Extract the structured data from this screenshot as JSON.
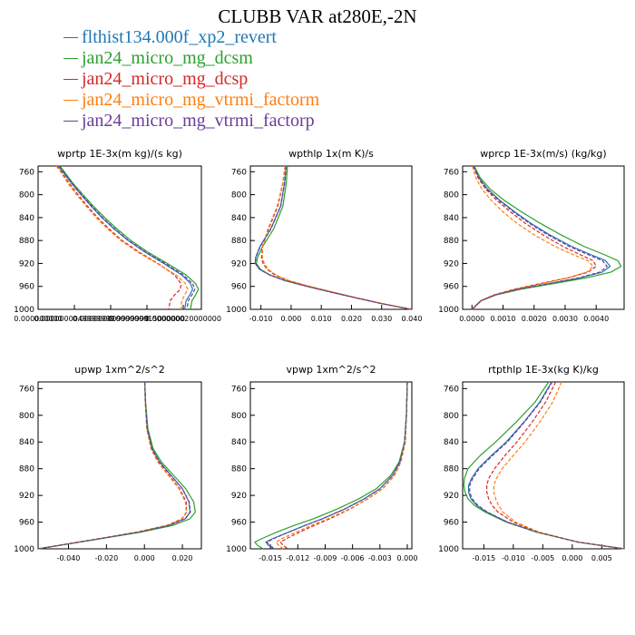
{
  "title": "CLUBB VAR at280E,-2N",
  "legend": [
    {
      "label": "flthist134.000f_xp2_revert",
      "color": "#1f77b4"
    },
    {
      "label": "jan24_micro_mg_dcsm",
      "color": "#2ca02c"
    },
    {
      "label": "jan24_micro_mg_dcsp",
      "color": "#d62728"
    },
    {
      "label": "jan24_micro_mg_vtrmi_factorm",
      "color": "#ff7f0e"
    },
    {
      "label": "jan24_micro_mg_vtrmi_factorp",
      "color": "#6a3d9a"
    }
  ],
  "chart_data": [
    {
      "type": "line",
      "title": "wprtp  1E-3x(m kg)/(s kg)",
      "ylim": [
        1000,
        750
      ],
      "yticks": [
        760,
        800,
        840,
        880,
        920,
        960,
        1000
      ],
      "xlim": [
        0,
        2.25e-08
      ],
      "xticks": [
        0,
        5e-09,
        1e-08,
        1.5e-08,
        2e-08
      ],
      "xticklabels": [
        "0.000000000",
        "0.0000000049999999",
        "0.000000009999999",
        "0.000000015000000",
        "0.000000020000000"
      ],
      "y": [
        750,
        760,
        780,
        800,
        820,
        840,
        860,
        880,
        900,
        920,
        940,
        955,
        965,
        975,
        985,
        1000
      ],
      "series": [
        {
          "color": "#1f77b4",
          "style": "solid",
          "x": [
            2.8e-09,
            3.4e-09,
            4.6e-09,
            5.9e-09,
            7.3e-09,
            8.8e-09,
            1.05e-08,
            1.24e-08,
            1.47e-08,
            1.73e-08,
            1.98e-08,
            2.1e-08,
            2.13e-08,
            2.09e-08,
            2.04e-08,
            2.02e-08
          ]
        },
        {
          "color": "#2ca02c",
          "style": "solid",
          "x": [
            3e-09,
            3.6e-09,
            4.8e-09,
            6.2e-09,
            7.6e-09,
            9.2e-09,
            1.09e-08,
            1.28e-08,
            1.51e-08,
            1.78e-08,
            2.04e-08,
            2.17e-08,
            2.21e-08,
            2.17e-08,
            2.12e-08,
            2.1e-08
          ]
        },
        {
          "color": "#d62728",
          "style": "dash",
          "x": [
            2.6e-09,
            3.2e-09,
            4.3e-09,
            5.5e-09,
            6.8e-09,
            8.2e-09,
            9.8e-09,
            1.16e-08,
            1.39e-08,
            1.65e-08,
            1.88e-08,
            1.97e-08,
            1.96e-08,
            1.88e-08,
            1.82e-08,
            1.8e-08
          ]
        },
        {
          "color": "#ff7f0e",
          "style": "dash",
          "x": [
            2.5e-09,
            3.1e-09,
            4.1e-09,
            5.3e-09,
            6.6e-09,
            8e-09,
            9.6e-09,
            1.14e-08,
            1.37e-08,
            1.64e-08,
            1.9e-08,
            2.03e-08,
            2.06e-08,
            2.02e-08,
            1.98e-08,
            1.97e-08
          ]
        },
        {
          "color": "#6a3d9a",
          "style": "dash",
          "x": [
            2.9e-09,
            3.5e-09,
            4.7e-09,
            6e-09,
            7.4e-09,
            8.9e-09,
            1.06e-08,
            1.25e-08,
            1.48e-08,
            1.75e-08,
            2e-08,
            2.13e-08,
            2.16e-08,
            2.12e-08,
            2.07e-08,
            2.05e-08
          ]
        }
      ]
    },
    {
      "type": "line",
      "title": "wpthlp  1x(m K)/s",
      "ylim": [
        1000,
        750
      ],
      "yticks": [
        760,
        800,
        840,
        880,
        920,
        960,
        1000
      ],
      "xlim": [
        -0.0135,
        0.04
      ],
      "xticks": [
        -0.01,
        0.0,
        0.01,
        0.02,
        0.03,
        0.04
      ],
      "xticklabels": [
        "-0.010",
        "0.000",
        "0.010",
        "0.020",
        "0.030",
        "0.040"
      ],
      "y": [
        750,
        780,
        820,
        860,
        890,
        910,
        920,
        930,
        940,
        950,
        960,
        970,
        980,
        990,
        1000
      ],
      "series": [
        {
          "color": "#1f77b4",
          "style": "solid",
          "x": [
            -0.0017,
            -0.0022,
            -0.0035,
            -0.0068,
            -0.0103,
            -0.0118,
            -0.0119,
            -0.0105,
            -0.0072,
            -0.002,
            0.0052,
            0.0132,
            0.0215,
            0.03,
            0.0398
          ]
        },
        {
          "color": "#2ca02c",
          "style": "solid",
          "x": [
            -0.0012,
            -0.0016,
            -0.0027,
            -0.0058,
            -0.0094,
            -0.0112,
            -0.0115,
            -0.0102,
            -0.007,
            -0.0018,
            0.0054,
            0.0133,
            0.0216,
            0.03,
            0.0398
          ]
        },
        {
          "color": "#d62728",
          "style": "dash",
          "x": [
            -0.002,
            -0.0027,
            -0.0044,
            -0.0075,
            -0.0095,
            -0.0098,
            -0.0093,
            -0.008,
            -0.0054,
            -0.0008,
            0.006,
            0.0137,
            0.0218,
            0.0302,
            0.0398
          ]
        },
        {
          "color": "#ff7f0e",
          "style": "dash",
          "x": [
            -0.002,
            -0.0028,
            -0.0046,
            -0.0077,
            -0.0094,
            -0.0095,
            -0.0089,
            -0.0076,
            -0.005,
            -0.0006,
            0.0062,
            0.0138,
            0.0219,
            0.0302,
            0.0398
          ]
        },
        {
          "color": "#6a3d9a",
          "style": "dash",
          "x": [
            -0.0016,
            -0.0021,
            -0.0034,
            -0.0067,
            -0.0102,
            -0.0117,
            -0.0118,
            -0.0104,
            -0.0071,
            -0.0019,
            0.0053,
            0.0132,
            0.0215,
            0.03,
            0.0398
          ]
        }
      ]
    },
    {
      "type": "line",
      "title": "wprcp  1E-3x(m/s) (kg/kg)",
      "ylim": [
        1000,
        750
      ],
      "yticks": [
        760,
        800,
        840,
        880,
        920,
        960,
        1000
      ],
      "xlim": [
        -0.0003,
        0.0049
      ],
      "xticks": [
        0.0,
        0.001,
        0.002,
        0.003,
        0.004
      ],
      "xticklabels": [
        "0.0000",
        "0.0010",
        "0.0020",
        "0.0030",
        "0.0040"
      ],
      "y": [
        750,
        770,
        790,
        810,
        830,
        850,
        870,
        890,
        905,
        915,
        925,
        935,
        945,
        955,
        965,
        975,
        985,
        1000
      ],
      "series": [
        {
          "color": "#1f77b4",
          "style": "solid",
          "x": [
            5e-05,
            0.00022,
            0.0005,
            0.0009,
            0.00138,
            0.0019,
            0.0025,
            0.0032,
            0.00385,
            0.0043,
            0.00445,
            0.0042,
            0.0035,
            0.0025,
            0.0015,
            0.00075,
            0.0003,
            0.0
          ]
        },
        {
          "color": "#2ca02c",
          "style": "solid",
          "x": [
            7e-05,
            0.00026,
            0.00058,
            0.00104,
            0.0016,
            0.0022,
            0.00286,
            0.0036,
            0.00428,
            0.0047,
            0.0048,
            0.00448,
            0.0037,
            0.00262,
            0.00156,
            0.00077,
            0.0003,
            0.0
          ]
        },
        {
          "color": "#d62728",
          "style": "dash",
          "x": [
            4e-05,
            0.00019,
            0.00044,
            0.0008,
            0.00124,
            0.00172,
            0.00228,
            0.00292,
            0.0035,
            0.0039,
            0.004,
            0.00375,
            0.0031,
            0.0022,
            0.00135,
            0.0007,
            0.00028,
            0.0
          ]
        },
        {
          "color": "#ff7f0e",
          "style": "dash",
          "x": [
            1e-05,
            0.00012,
            0.00032,
            0.00062,
            0.001,
            0.00145,
            0.002,
            0.00266,
            0.00328,
            0.00373,
            0.0039,
            0.0037,
            0.0031,
            0.00225,
            0.0014,
            0.00072,
            0.00028,
            0.0
          ]
        },
        {
          "color": "#6a3d9a",
          "style": "dash",
          "x": [
            5e-05,
            0.00021,
            0.00048,
            0.00087,
            0.00134,
            0.00185,
            0.00244,
            0.00312,
            0.00376,
            0.0042,
            0.00435,
            0.00412,
            0.00345,
            0.00246,
            0.00148,
            0.00074,
            0.00029,
            0.0
          ]
        }
      ]
    },
    {
      "type": "line",
      "title": "upwp  1xm^2/s^2",
      "ylim": [
        1000,
        750
      ],
      "yticks": [
        760,
        800,
        840,
        880,
        920,
        960,
        1000
      ],
      "xlim": [
        -0.056,
        0.03
      ],
      "xticks": [
        -0.04,
        -0.02,
        0.0,
        0.02
      ],
      "xticklabels": [
        "-0.040",
        "-0.020",
        "0.000",
        "0.020"
      ],
      "y": [
        750,
        780,
        820,
        850,
        870,
        890,
        910,
        930,
        945,
        955,
        965,
        975,
        985,
        1000
      ],
      "series": [
        {
          "color": "#1f77b4",
          "style": "solid",
          "x": [
            0.0002,
            0.0005,
            0.0015,
            0.004,
            0.008,
            0.014,
            0.02,
            0.0235,
            0.024,
            0.0215,
            0.013,
            -0.003,
            -0.024,
            -0.056
          ]
        },
        {
          "color": "#2ca02c",
          "style": "solid",
          "x": [
            0.0002,
            0.0006,
            0.0018,
            0.0046,
            0.009,
            0.0154,
            0.0218,
            0.026,
            0.0268,
            0.024,
            0.015,
            -0.002,
            -0.0235,
            -0.056
          ]
        },
        {
          "color": "#d62728",
          "style": "dash",
          "x": [
            0.0002,
            0.0005,
            0.0013,
            0.0036,
            0.0074,
            0.013,
            0.0186,
            0.022,
            0.0222,
            0.0198,
            0.0118,
            -0.004,
            -0.0245,
            -0.056
          ]
        },
        {
          "color": "#ff7f0e",
          "style": "dash",
          "x": [
            0.0002,
            0.0004,
            0.0012,
            0.0034,
            0.007,
            0.0126,
            0.0182,
            0.0216,
            0.022,
            0.0196,
            0.0116,
            -0.0042,
            -0.0246,
            -0.056
          ]
        },
        {
          "color": "#6a3d9a",
          "style": "dash",
          "x": [
            0.0002,
            0.0005,
            0.0015,
            0.004,
            0.008,
            0.014,
            0.02,
            0.0236,
            0.0242,
            0.0216,
            0.0131,
            -0.003,
            -0.024,
            -0.056
          ]
        }
      ]
    },
    {
      "type": "line",
      "title": "vpwp  1xm^2/s^2",
      "ylim": [
        1000,
        750
      ],
      "yticks": [
        760,
        800,
        840,
        880,
        920,
        960,
        1000
      ],
      "xlim": [
        -0.0172,
        0.0005
      ],
      "xticks": [
        -0.015,
        -0.012,
        -0.009,
        -0.006,
        -0.003,
        0.0
      ],
      "xticklabels": [
        "-0.015",
        "-0.012",
        "-0.009",
        "-0.006",
        "-0.003",
        "0.000"
      ],
      "y": [
        750,
        800,
        840,
        870,
        890,
        910,
        925,
        940,
        955,
        965,
        975,
        985,
        990,
        995,
        1000
      ],
      "series": [
        {
          "color": "#1f77b4",
          "style": "solid",
          "x": [
            0.0,
            -0.0001,
            -0.0003,
            -0.0008,
            -0.0016,
            -0.003,
            -0.0047,
            -0.0068,
            -0.0093,
            -0.0112,
            -0.013,
            -0.0148,
            -0.0155,
            -0.0152,
            -0.0146
          ]
        },
        {
          "color": "#2ca02c",
          "style": "solid",
          "x": [
            0.0,
            -0.0001,
            -0.0003,
            -0.0009,
            -0.0018,
            -0.0034,
            -0.0053,
            -0.0076,
            -0.0103,
            -0.0124,
            -0.0143,
            -0.016,
            -0.0167,
            -0.0164,
            -0.0158
          ]
        },
        {
          "color": "#d62728",
          "style": "dash",
          "x": [
            0.0,
            -0.0001,
            -0.0003,
            -0.0007,
            -0.0014,
            -0.0027,
            -0.0043,
            -0.0062,
            -0.0085,
            -0.0102,
            -0.0118,
            -0.0133,
            -0.0139,
            -0.0136,
            -0.0131
          ]
        },
        {
          "color": "#ff7f0e",
          "style": "dash",
          "x": [
            0.0,
            -0.0001,
            -0.0002,
            -0.0007,
            -0.0014,
            -0.0027,
            -0.0043,
            -0.0063,
            -0.0087,
            -0.0105,
            -0.0122,
            -0.0138,
            -0.0144,
            -0.0141,
            -0.0136
          ]
        },
        {
          "color": "#6a3d9a",
          "style": "dash",
          "x": [
            0.0,
            -0.0001,
            -0.0003,
            -0.0008,
            -0.0016,
            -0.003,
            -0.0047,
            -0.0068,
            -0.0093,
            -0.0112,
            -0.013,
            -0.0147,
            -0.0154,
            -0.0151,
            -0.0145
          ]
        }
      ]
    },
    {
      "type": "line",
      "title": "rtpthlp  1E-3x(kg K)/kg",
      "ylim": [
        1000,
        750
      ],
      "yticks": [
        760,
        800,
        840,
        880,
        920,
        960,
        1000
      ],
      "xlim": [
        -0.0186,
        0.0088
      ],
      "xticks": [
        -0.015,
        -0.01,
        -0.005,
        0.0,
        0.005
      ],
      "xticklabels": [
        "-0.015",
        "-0.010",
        "-0.005",
        "0.000",
        "0.005"
      ],
      "y": [
        750,
        780,
        810,
        840,
        860,
        880,
        895,
        905,
        915,
        925,
        935,
        945,
        960,
        975,
        990,
        1000
      ],
      "series": [
        {
          "color": "#1f77b4",
          "style": "solid",
          "x": [
            -0.0035,
            -0.0055,
            -0.0082,
            -0.0112,
            -0.0137,
            -0.016,
            -0.0171,
            -0.0176,
            -0.0176,
            -0.0172,
            -0.0162,
            -0.0145,
            -0.011,
            -0.006,
            0.001,
            0.0088
          ]
        },
        {
          "color": "#2ca02c",
          "style": "solid",
          "x": [
            -0.004,
            -0.0063,
            -0.0095,
            -0.013,
            -0.0156,
            -0.0177,
            -0.0183,
            -0.0184,
            -0.0182,
            -0.0177,
            -0.0166,
            -0.0148,
            -0.0112,
            -0.0061,
            0.001,
            0.0088
          ]
        },
        {
          "color": "#d62728",
          "style": "dash",
          "x": [
            -0.0028,
            -0.0045,
            -0.0068,
            -0.0094,
            -0.0114,
            -0.0132,
            -0.0142,
            -0.0145,
            -0.0145,
            -0.0142,
            -0.0136,
            -0.0126,
            -0.01,
            -0.0058,
            0.001,
            0.0088
          ]
        },
        {
          "color": "#ff7f0e",
          "style": "dash",
          "x": [
            -0.0018,
            -0.0033,
            -0.0055,
            -0.008,
            -0.01,
            -0.0119,
            -0.0129,
            -0.0133,
            -0.0133,
            -0.013,
            -0.0125,
            -0.0118,
            -0.0096,
            -0.0056,
            0.001,
            0.0088
          ]
        },
        {
          "color": "#6a3d9a",
          "style": "dash",
          "x": [
            -0.0034,
            -0.0054,
            -0.0081,
            -0.011,
            -0.0135,
            -0.0158,
            -0.0169,
            -0.0174,
            -0.0174,
            -0.017,
            -0.016,
            -0.0144,
            -0.011,
            -0.006,
            0.001,
            0.0088
          ]
        }
      ]
    }
  ]
}
